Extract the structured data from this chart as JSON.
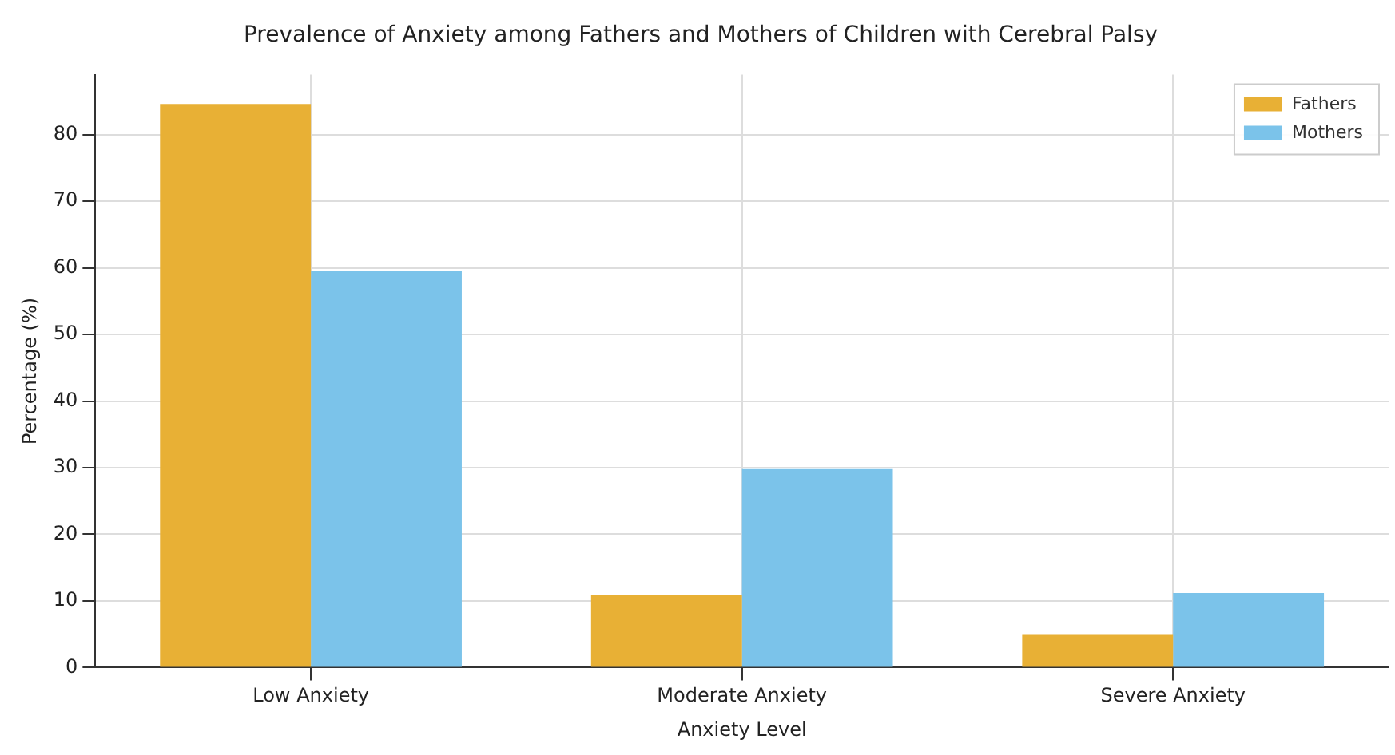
{
  "chart_data": {
    "type": "bar",
    "title": "Prevalence of Anxiety among Fathers and Mothers of Children with Cerebral Palsy",
    "xlabel": "Anxiety Level",
    "ylabel": "Percentage (%)",
    "categories": [
      "Low Anxiety",
      "Moderate Anxiety",
      "Severe Anxiety"
    ],
    "series": [
      {
        "name": "Fathers",
        "color": "#e8b035",
        "values": [
          84.6,
          10.9,
          4.9
        ]
      },
      {
        "name": "Mothers",
        "color": "#7bc3ea",
        "values": [
          59.5,
          29.8,
          11.2
        ]
      }
    ],
    "ylim": [
      0,
      89
    ],
    "yticks": [
      0,
      10,
      20,
      30,
      40,
      50,
      60,
      70,
      80
    ],
    "grid": true,
    "legend": "top right"
  }
}
